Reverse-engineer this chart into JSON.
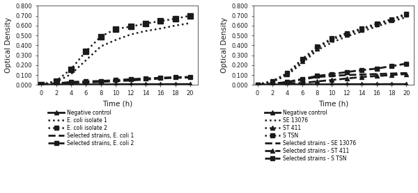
{
  "time": [
    0,
    2,
    4,
    6,
    8,
    10,
    12,
    14,
    16,
    18,
    20
  ],
  "left": {
    "ylabel": "Optical Density",
    "xlabel": "Time (h)",
    "ylim": [
      0,
      0.8
    ],
    "yticks": [
      0.0,
      0.1,
      0.2,
      0.3,
      0.4,
      0.5,
      0.6,
      0.7,
      0.8
    ],
    "xticks": [
      0,
      2,
      4,
      6,
      8,
      10,
      12,
      14,
      16,
      18,
      20
    ],
    "series": {
      "neg_ctrl": [
        0.002,
        0.004,
        0.005,
        0.005,
        0.005,
        0.006,
        0.007,
        0.007,
        0.007,
        0.008,
        0.008
      ],
      "ecoli1": [
        0.005,
        0.03,
        0.11,
        0.25,
        0.39,
        0.455,
        0.51,
        0.545,
        0.57,
        0.6,
        0.625
      ],
      "ecoli2": [
        0.005,
        0.04,
        0.16,
        0.34,
        0.49,
        0.565,
        0.59,
        0.62,
        0.645,
        0.67,
        0.7
      ],
      "sel_ecoli1": [
        0.003,
        0.01,
        0.02,
        0.025,
        0.03,
        0.038,
        0.045,
        0.055,
        0.065,
        0.072,
        0.075
      ],
      "sel_ecoli2": [
        0.003,
        0.015,
        0.03,
        0.035,
        0.04,
        0.048,
        0.058,
        0.065,
        0.072,
        0.078,
        0.08
      ]
    },
    "legend": [
      "Negative control",
      "E. coli isolate 1",
      "E. coli isolate 2",
      "Selected strains, E. coli 1",
      "Selected strains, E. coli 2"
    ]
  },
  "right": {
    "ylabel": "Optical Density",
    "xlabel": "Time (h)",
    "ylim": [
      0,
      0.8
    ],
    "yticks": [
      0.0,
      0.1,
      0.2,
      0.3,
      0.4,
      0.5,
      0.6,
      0.7,
      0.8
    ],
    "xticks": [
      0,
      2,
      4,
      6,
      8,
      10,
      12,
      14,
      16,
      18,
      20
    ],
    "series": {
      "neg_ctrl": [
        0.002,
        0.004,
        0.005,
        0.005,
        0.005,
        0.006,
        0.007,
        0.007,
        0.007,
        0.008,
        0.008
      ],
      "se13076": [
        0.005,
        0.03,
        0.1,
        0.22,
        0.35,
        0.43,
        0.49,
        0.54,
        0.59,
        0.64,
        0.685
      ],
      "st411": [
        0.005,
        0.035,
        0.11,
        0.24,
        0.37,
        0.46,
        0.51,
        0.56,
        0.61,
        0.655,
        0.71
      ],
      "stsn": [
        0.005,
        0.038,
        0.12,
        0.26,
        0.385,
        0.47,
        0.525,
        0.57,
        0.62,
        0.665,
        0.72
      ],
      "sel_se13076": [
        0.003,
        0.01,
        0.025,
        0.055,
        0.08,
        0.09,
        0.1,
        0.105,
        0.11,
        0.115,
        0.12
      ],
      "sel_st411": [
        0.003,
        0.008,
        0.015,
        0.02,
        0.035,
        0.05,
        0.065,
        0.08,
        0.09,
        0.1,
        0.11
      ],
      "sel_stsn": [
        0.003,
        0.012,
        0.03,
        0.06,
        0.09,
        0.11,
        0.13,
        0.15,
        0.165,
        0.19,
        0.215
      ]
    },
    "legend": [
      "Negative control",
      "SE 13076",
      "ST 411",
      "S TSN",
      "Selected strains - SE 13076",
      "Selected strains - ST 411",
      "Selected strains - S TSN"
    ]
  },
  "color": "#1a1a1a",
  "bg_color": "#ffffff",
  "lw_thin": 1.0,
  "lw_thick": 2.0,
  "lw_dot": 1.8,
  "ms_tri": 4,
  "ms_sq": 5,
  "legend_fontsize": 5.5,
  "tick_fontsize": 6,
  "label_fontsize": 7.5
}
